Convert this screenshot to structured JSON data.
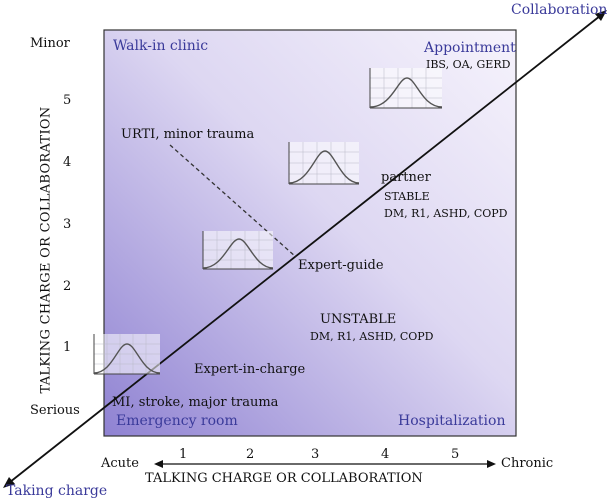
{
  "corner_labels": {
    "collaboration": "Collaboration",
    "taking_charge": "Taking charge"
  },
  "y_axis": {
    "title": "TALKING CHARGE OR COLLABORATION",
    "top": "Minor",
    "bottom": "Serious",
    "ticks": [
      "5",
      "4",
      "3",
      "2",
      "1"
    ]
  },
  "x_axis": {
    "title": "TALKING CHARGE OR COLLABORATION",
    "left": "Acute",
    "right": "Chronic",
    "ticks": [
      "1",
      "2",
      "3",
      "4",
      "5"
    ]
  },
  "quadrants": {
    "top_left": "Walk-in clinic",
    "bottom_left": "Emergency room",
    "bottom_right": "Hospitalization"
  },
  "diagonal_points": {
    "appointment": "Appointment",
    "appointment_conditions": "IBS, OA, GERD",
    "partner": "partner",
    "stable": "STABLE",
    "stable_conditions": "DM, R1, ASHD, COPD",
    "expert_guide": "Expert-guide",
    "expert_in_charge": "Expert-in-charge"
  },
  "annotations": {
    "urti": "URTI, minor trauma",
    "unstable": "UNSTABLE",
    "unstable_conditions": "DM, R1, ASHD, COPD",
    "mi": "MI, stroke, major trauma"
  },
  "colors": {
    "box_top": "#f3effb",
    "box_bottom": "#8d7fd0",
    "text_blue": "#3a3a9a"
  }
}
